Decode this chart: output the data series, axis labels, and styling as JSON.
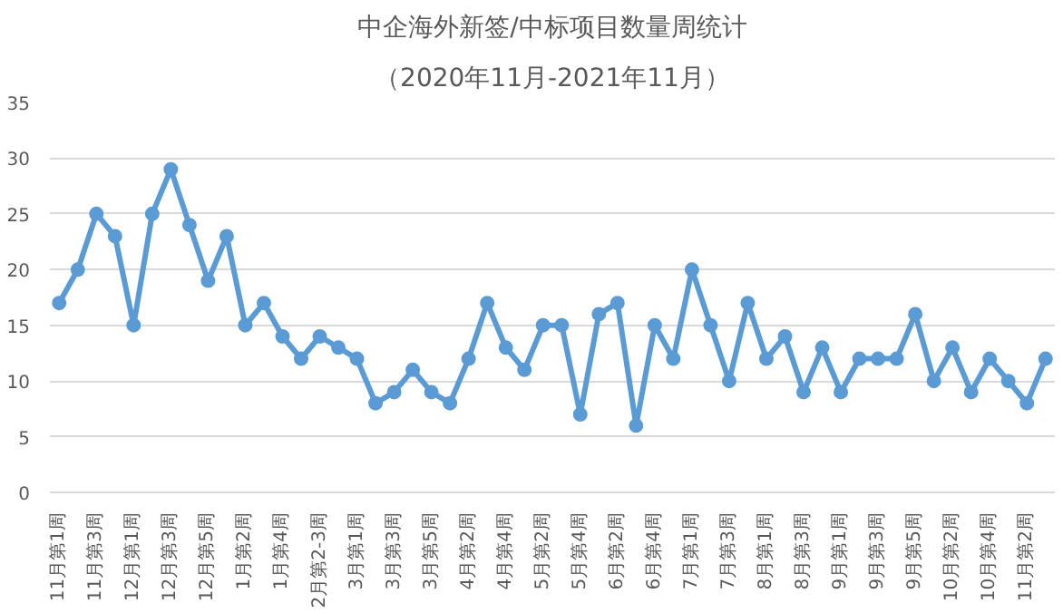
{
  "chart_data": {
    "type": "line",
    "title": "中企海外新签/中标项目数量周统计",
    "subtitle": "（2020年11月-2021年11月）",
    "categories": [
      "11月第1周",
      null,
      "11月第3周",
      null,
      "12月第1周",
      null,
      "12月第3周",
      null,
      "12月第5周",
      null,
      "1月第2周",
      null,
      "1月第4周",
      null,
      "2月第2-3周",
      null,
      "3月第1周",
      null,
      "3月第3周",
      null,
      "3月第5周",
      null,
      "4月第2周",
      null,
      "4月第4周",
      null,
      "5月第2周",
      null,
      "5月第4周",
      null,
      "6月第2周",
      null,
      "6月第4周",
      null,
      "7月第1周",
      null,
      "7月第3周",
      null,
      "8月第1周",
      null,
      "8月第3周",
      null,
      "9月第1周",
      null,
      "9月第3周",
      null,
      "9月第5周",
      null,
      "10月第2周",
      null,
      "10月第4周",
      null,
      "11月第2周",
      null
    ],
    "series": [
      {
        "color": "#5b9bd5",
        "values": [
          17,
          20,
          25,
          23,
          15,
          25,
          29,
          24,
          19,
          23,
          15,
          17,
          14,
          12,
          14,
          13,
          12,
          8,
          9,
          11,
          9,
          8,
          12,
          17,
          13,
          11,
          15,
          15,
          7,
          16,
          17,
          6,
          15,
          12,
          20,
          15,
          10,
          17,
          12,
          14,
          9,
          13,
          9,
          12,
          12,
          12,
          16,
          10,
          13,
          9,
          12,
          10,
          8,
          12
        ]
      }
    ],
    "ylim": [
      0,
      35
    ],
    "yticks": [
      0,
      5,
      10,
      15,
      20,
      25,
      30,
      35
    ],
    "grid": "y",
    "marker": "circle",
    "line_style": "solid"
  }
}
